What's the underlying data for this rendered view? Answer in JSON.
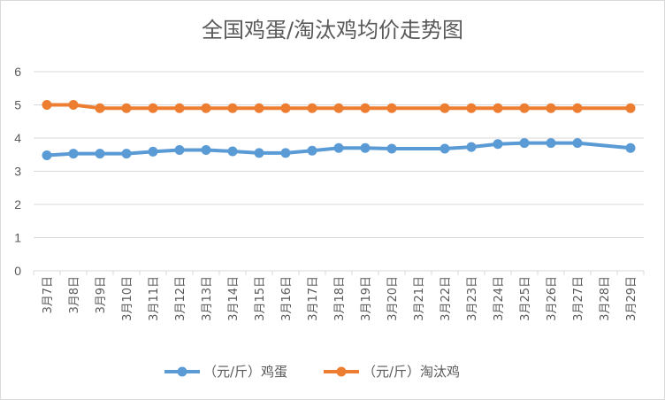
{
  "chart_data": {
    "type": "line",
    "title": "全国鸡蛋/淘汰鸡均价走势图",
    "categories": [
      "3月7日",
      "3月8日",
      "3月9日",
      "3月10日",
      "3月11日",
      "3月12日",
      "3月13日",
      "3月14日",
      "3月15日",
      "3月16日",
      "3月17日",
      "3月18日",
      "3月19日",
      "3月20日",
      "3月21日",
      "3月22日",
      "3月23日",
      "3月24日",
      "3月25日",
      "3月26日",
      "3月27日",
      "3月28日",
      "3月29日"
    ],
    "series": [
      {
        "name": "（元/斤）鸡蛋",
        "color": "#5b9bd5",
        "values": [
          3.48,
          3.53,
          3.53,
          3.53,
          3.59,
          3.64,
          3.64,
          3.6,
          3.55,
          3.55,
          3.62,
          3.7,
          3.7,
          3.68,
          null,
          3.68,
          3.73,
          3.82,
          3.85,
          3.85,
          3.85,
          null,
          3.7
        ]
      },
      {
        "name": "（元/斤）淘汰鸡",
        "color": "#ed7d31",
        "values": [
          5.0,
          5.0,
          4.9,
          4.9,
          4.9,
          4.9,
          4.9,
          4.9,
          4.9,
          4.9,
          4.9,
          4.9,
          4.9,
          4.9,
          null,
          4.9,
          4.9,
          4.9,
          4.9,
          4.9,
          4.9,
          null,
          4.9
        ]
      }
    ],
    "ylim": [
      0,
      6
    ],
    "yticks": [
      0,
      1,
      2,
      3,
      4,
      5,
      6
    ],
    "grid": true,
    "legend": "bottom"
  }
}
